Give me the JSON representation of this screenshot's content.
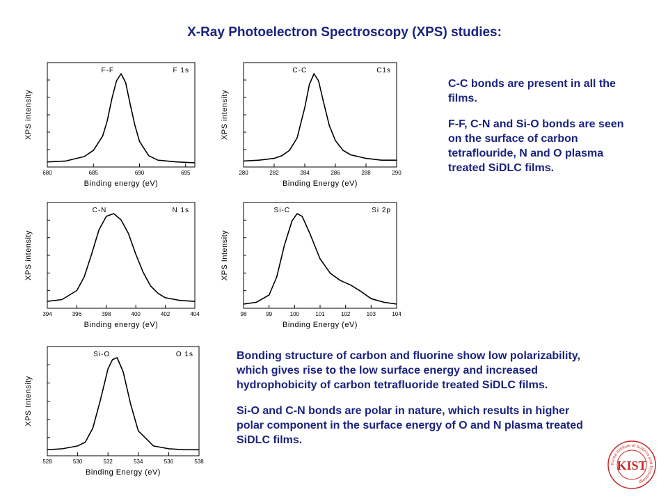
{
  "header": {
    "title": "X-Ray Photoelectron Spectroscopy (XPS) studies:"
  },
  "notes": {
    "top": [
      "C-C bonds are present in all the films.",
      "F-F, C-N and Si-O bonds are seen on the surface of carbon tetraflouride, N and O plasma treated SiDLC films."
    ],
    "bottom": [
      "Bonding structure of carbon and fluorine show low polarizability, which gives rise to the low surface energy and increased hydrophobicity of carbon tetrafluoride treated SiDLC films.",
      "Si-O and C-N bonds are polar in nature, which results in higher polar component in the surface energy of O and N plasma treated SiDLC films."
    ]
  },
  "logo": {
    "text": "KIST",
    "ring_text": "Korea Institute of Science and Technology"
  },
  "colors": {
    "text_accent": "#1a237e",
    "logo": "#c62828"
  },
  "chart_data": [
    {
      "id": "f1s",
      "type": "line",
      "xlabel": "Binding energy (eV)",
      "ylabel": "XPS intensity",
      "xlim": [
        680,
        696
      ],
      "xticks": [
        "680",
        "685",
        "690",
        "695"
      ],
      "peak_label": "F-F",
      "core_label": "F 1s",
      "x": [
        680,
        682,
        684,
        685,
        686,
        686.5,
        687,
        687.5,
        688,
        688.5,
        689,
        689.5,
        690,
        691,
        692,
        694,
        696
      ],
      "y": [
        0.01,
        0.02,
        0.07,
        0.14,
        0.3,
        0.47,
        0.72,
        0.92,
        1.0,
        0.9,
        0.65,
        0.42,
        0.24,
        0.08,
        0.03,
        0.01,
        0.0
      ]
    },
    {
      "id": "c1s",
      "type": "line",
      "xlabel": "Binding Energy (eV)",
      "ylabel": "XPS intensity",
      "xlim": [
        280,
        290
      ],
      "xticks": [
        "280",
        "282",
        "284",
        "286",
        "288",
        "290"
      ],
      "peak_label": "C-C",
      "core_label": "C1s",
      "x": [
        280,
        281,
        282,
        282.5,
        283,
        283.5,
        284,
        284.3,
        284.6,
        284.9,
        285.2,
        285.6,
        286,
        286.5,
        287,
        288,
        289,
        290
      ],
      "y": [
        0.02,
        0.03,
        0.05,
        0.08,
        0.14,
        0.28,
        0.62,
        0.88,
        1.0,
        0.92,
        0.7,
        0.42,
        0.25,
        0.14,
        0.09,
        0.05,
        0.03,
        0.03
      ]
    },
    {
      "id": "n1s",
      "type": "line",
      "xlabel": "Binding energy (eV)",
      "ylabel": "XPS intensity",
      "xlim": [
        394,
        404
      ],
      "xticks": [
        "394",
        "396",
        "398",
        "400",
        "402",
        "404"
      ],
      "peak_label": "C-N",
      "core_label": "N 1s",
      "x": [
        394,
        395,
        396,
        396.5,
        397,
        397.5,
        398,
        398.5,
        399,
        399.5,
        400,
        400.5,
        401,
        401.5,
        402,
        403,
        404
      ],
      "y": [
        0.03,
        0.05,
        0.15,
        0.3,
        0.55,
        0.82,
        0.97,
        1.0,
        0.93,
        0.78,
        0.55,
        0.35,
        0.2,
        0.12,
        0.07,
        0.04,
        0.03
      ]
    },
    {
      "id": "si2p",
      "type": "line",
      "xlabel": "Binding Energy (eV)",
      "ylabel": "XPS Intensity",
      "xlim": [
        98,
        104
      ],
      "xticks": [
        "98",
        "99",
        "100",
        "101",
        "102",
        "103",
        "104"
      ],
      "peak_label": "Si-C",
      "core_label": "Si 2p",
      "x": [
        98,
        98.5,
        99,
        99.3,
        99.6,
        99.9,
        100.1,
        100.3,
        100.6,
        101,
        101.4,
        101.8,
        102.2,
        102.6,
        103,
        103.5,
        104
      ],
      "y": [
        0.0,
        0.02,
        0.1,
        0.3,
        0.65,
        0.92,
        1.0,
        0.97,
        0.78,
        0.5,
        0.34,
        0.26,
        0.21,
        0.14,
        0.06,
        0.02,
        0.0
      ]
    },
    {
      "id": "o1s",
      "type": "line",
      "xlabel": "Binding Energy (eV)",
      "ylabel": "XPS Intensity",
      "xlim": [
        528,
        538
      ],
      "xticks": [
        "528",
        "530",
        "532",
        "534",
        "536",
        "538"
      ],
      "peak_label": "Si-O",
      "core_label": "O 1s",
      "x": [
        528,
        529,
        530,
        530.5,
        531,
        531.5,
        532,
        532.3,
        532.6,
        533,
        533.5,
        534,
        535,
        536,
        537,
        538
      ],
      "y": [
        0.02,
        0.03,
        0.06,
        0.1,
        0.25,
        0.55,
        0.88,
        0.98,
        1.0,
        0.85,
        0.5,
        0.22,
        0.06,
        0.03,
        0.02,
        0.02
      ]
    }
  ]
}
